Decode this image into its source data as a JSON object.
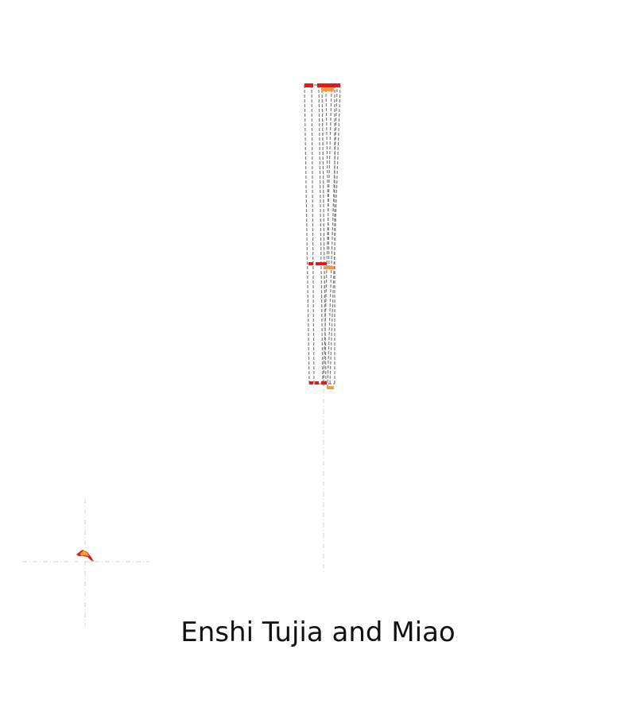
{
  "title": "Enshi Tujia and Miao",
  "colors": {
    "background": "#ffffff",
    "guide_line": "#d3d3d3",
    "outline": "#808080",
    "region_red": "#e31a1c",
    "region_orange": "#f59b3a",
    "region_gold": "#f5b300",
    "title_text": "#111111"
  }
}
